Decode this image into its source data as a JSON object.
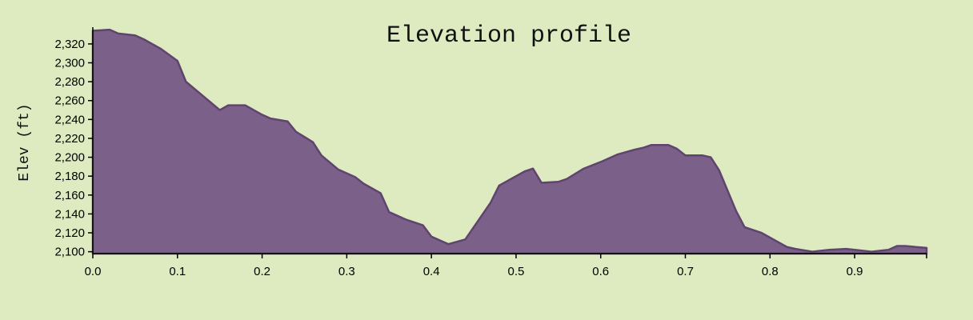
{
  "chart_data": {
    "type": "area",
    "title": "Elevation profile",
    "xlabel": "",
    "ylabel": "Elev (ft)",
    "xlim": [
      0,
      0.985
    ],
    "ylim": [
      2098,
      2336
    ],
    "x_ticks": [
      "0.0",
      "0.1",
      "0.2",
      "0.3",
      "0.4",
      "0.5",
      "0.6",
      "0.7",
      "0.8",
      "0.9"
    ],
    "y_ticks": [
      "2,100",
      "2,120",
      "2,140",
      "2,160",
      "2,180",
      "2,200",
      "2,220",
      "2,240",
      "2,260",
      "2,280",
      "2,300",
      "2,320"
    ],
    "grid": false,
    "legend": "none",
    "colors": {
      "fill": "#7b6189",
      "stroke": "#5f456d",
      "background": "#deebc1"
    },
    "series": [
      {
        "x": [
          0.0,
          0.02,
          0.03,
          0.05,
          0.06,
          0.08,
          0.1,
          0.11,
          0.13,
          0.15,
          0.16,
          0.18,
          0.2,
          0.21,
          0.23,
          0.24,
          0.26,
          0.27,
          0.29,
          0.31,
          0.32,
          0.34,
          0.35,
          0.37,
          0.39,
          0.4,
          0.42,
          0.44,
          0.45,
          0.47,
          0.48,
          0.5,
          0.51,
          0.52,
          0.53,
          0.55,
          0.56,
          0.58,
          0.6,
          0.62,
          0.64,
          0.65,
          0.66,
          0.68,
          0.69,
          0.7,
          0.72,
          0.73,
          0.74,
          0.76,
          0.77,
          0.79,
          0.8,
          0.82,
          0.83,
          0.85,
          0.87,
          0.89,
          0.9,
          0.92,
          0.94,
          0.95,
          0.96,
          0.985
        ],
        "y": [
          2334,
          2335,
          2331,
          2329,
          2325,
          2315,
          2302,
          2280,
          2265,
          2250,
          2255,
          2255,
          2245,
          2241,
          2238,
          2227,
          2216,
          2202,
          2187,
          2179,
          2172,
          2162,
          2142,
          2134,
          2128,
          2116,
          2108,
          2113,
          2126,
          2152,
          2170,
          2180,
          2185,
          2188,
          2173,
          2174,
          2177,
          2188,
          2195,
          2203,
          2208,
          2210,
          2213,
          2213,
          2209,
          2202,
          2202,
          2200,
          2186,
          2143,
          2126,
          2120,
          2115,
          2105,
          2103,
          2100,
          2102,
          2103,
          2102,
          2100,
          2102,
          2106,
          2106,
          2104
        ]
      }
    ]
  }
}
